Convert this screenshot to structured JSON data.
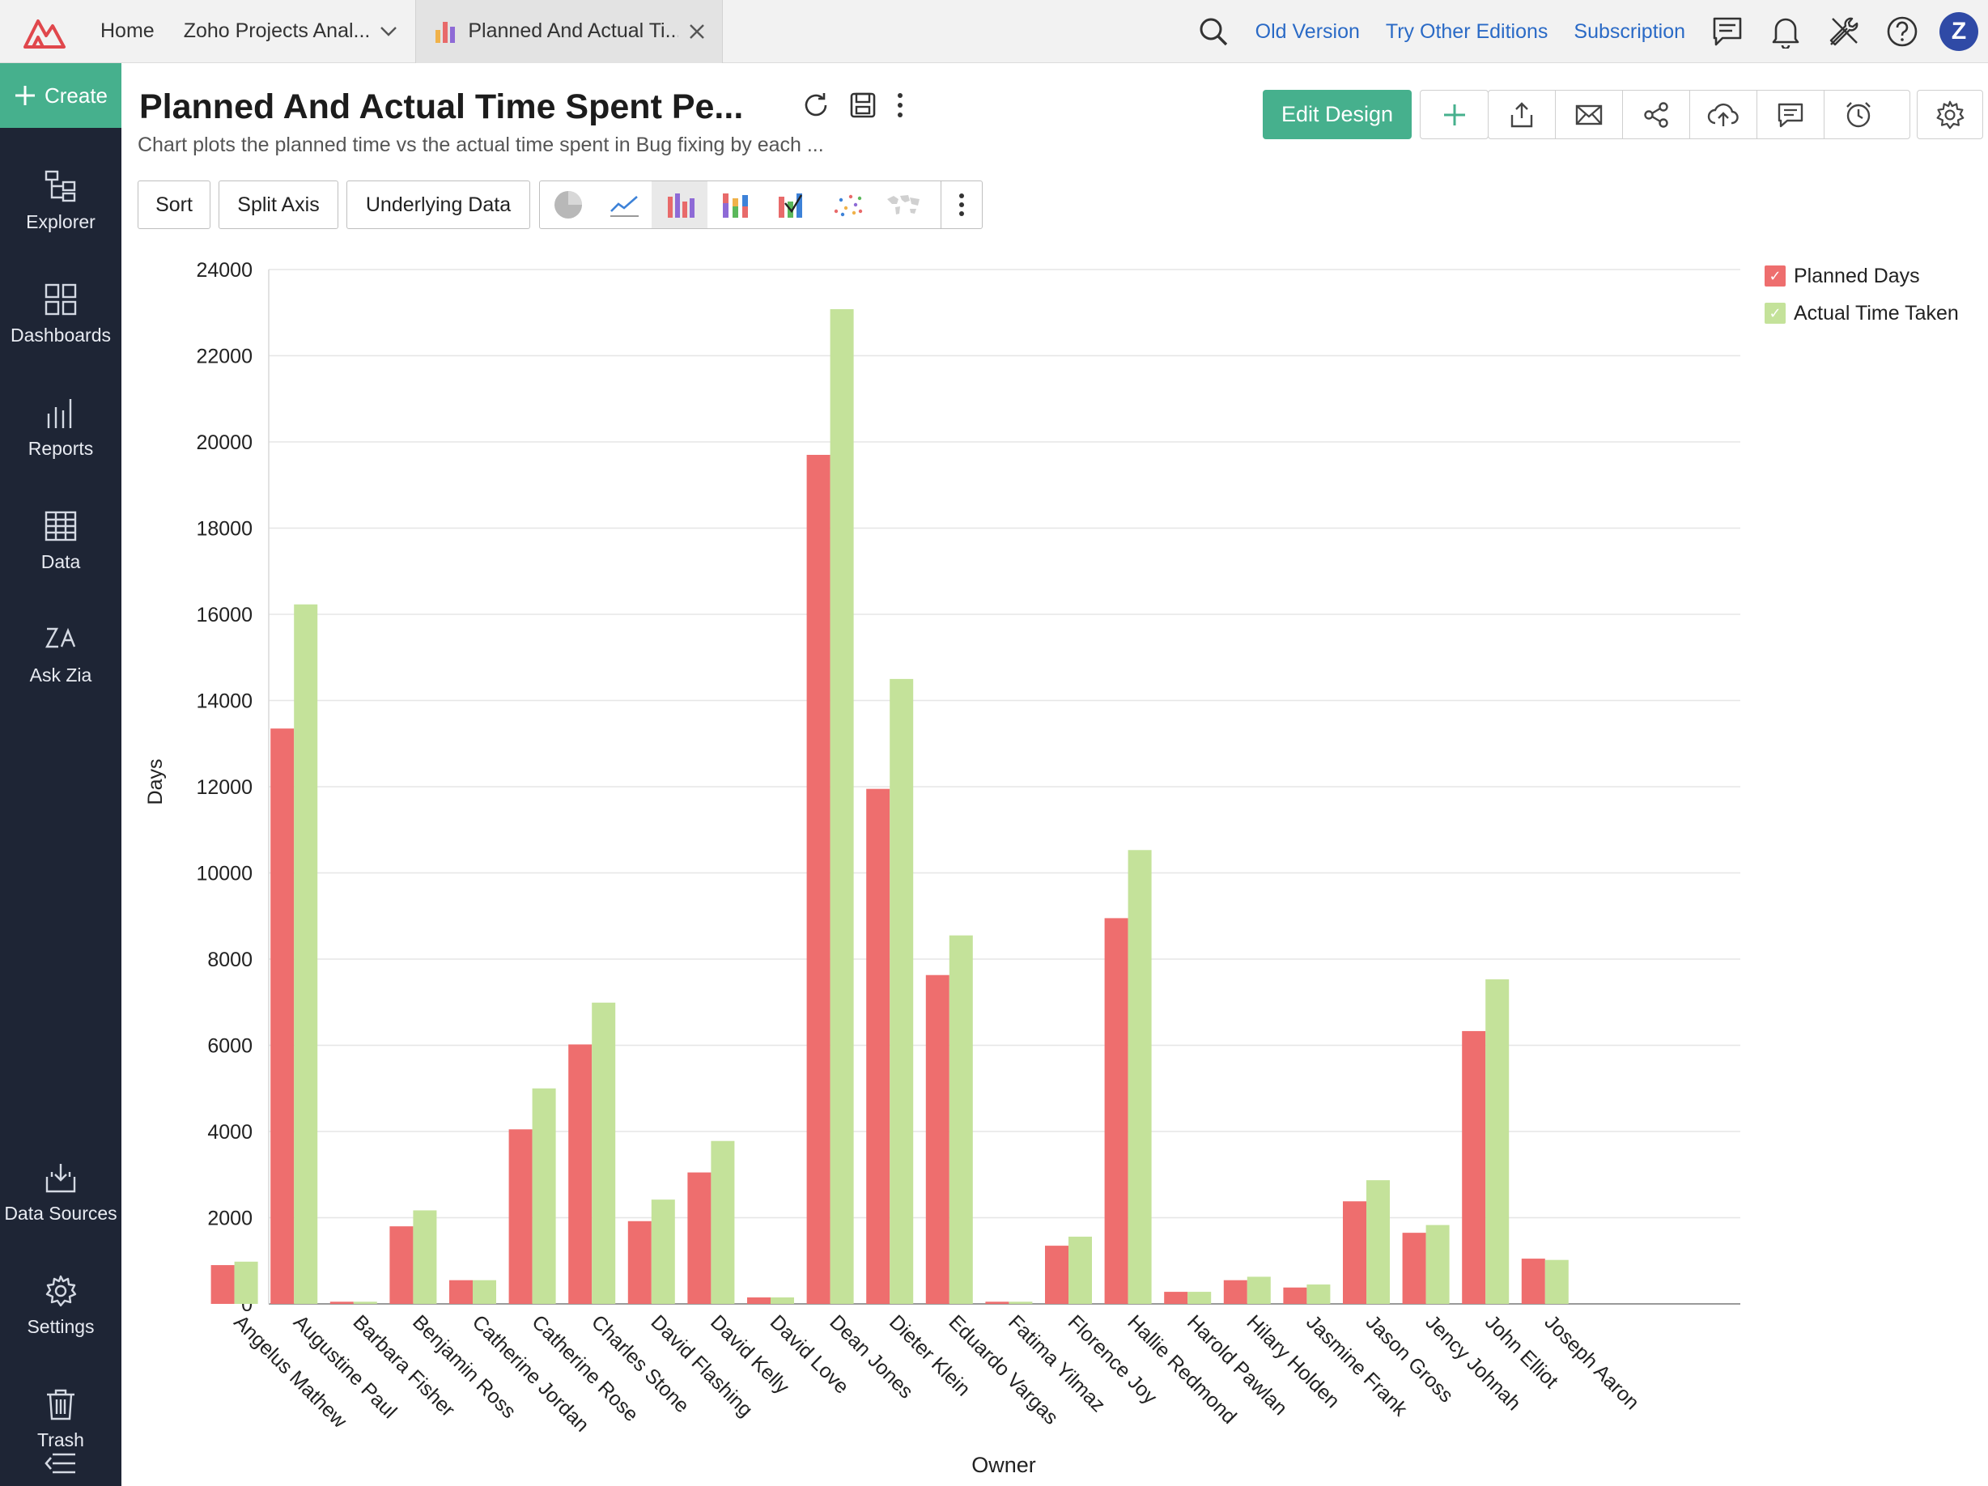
{
  "topbar": {
    "home": "Home",
    "workspace": "Zoho Projects Anal...",
    "tab_label": "Planned And Actual Ti...",
    "links": [
      "Old Version",
      "Try Other Editions",
      "Subscription"
    ],
    "avatar_letter": "Z"
  },
  "sidebar": {
    "create": "Create",
    "items": [
      "Explorer",
      "Dashboards",
      "Reports",
      "Data",
      "Ask Zia",
      "Data Sources",
      "Settings",
      "Trash"
    ]
  },
  "report": {
    "title": "Planned And Actual Time Spent Pe...",
    "subtitle": "Chart plots the planned time vs the actual time spent in Bug fixing by each ...",
    "edit_design": "Edit Design"
  },
  "toolbar": {
    "sort": "Sort",
    "split_axis": "Split Axis",
    "underlying_data": "Underlying Data"
  },
  "colors": {
    "planned": "#ee6e6e",
    "actual": "#c4e29a",
    "accent": "#46b08d",
    "sidebar": "#1e2535",
    "link": "#2a6ac6"
  },
  "chart_data": {
    "type": "bar",
    "xlabel": "Owner",
    "ylabel": "Days",
    "ylim": [
      0,
      24000
    ],
    "yticks": [
      0,
      2000,
      4000,
      6000,
      8000,
      10000,
      12000,
      14000,
      16000,
      18000,
      20000,
      22000,
      24000
    ],
    "grid": true,
    "legend_position": "top-right",
    "categories": [
      "Angelus Mathew",
      "Augustine Paul",
      "Barbara Fisher",
      "Benjamin Ross",
      "Catherine Jordan",
      "Catherine Rose",
      "Charles Stone",
      "David Flashing",
      "David Kelly",
      "David Love",
      "Dean Jones",
      "Dieter Klein",
      "Eduardo Vargas",
      "Fatima Yilmaz",
      "Florence Joy",
      "Hallie Redmond",
      "Harold Pawlan",
      "Hilary Holden",
      "Jasmine Frank",
      "Jason Gross",
      "Jency Johnah",
      "John Elliot",
      "Joseph Aaron"
    ],
    "series": [
      {
        "name": "Planned Days",
        "values": [
          900,
          13350,
          50,
          1800,
          550,
          4050,
          6020,
          1920,
          3050,
          150,
          19700,
          11950,
          7630,
          50,
          1350,
          8950,
          280,
          550,
          380,
          2380,
          1650,
          6330,
          1050
        ]
      },
      {
        "name": "Actual Time Taken",
        "values": [
          980,
          16230,
          50,
          2170,
          550,
          5000,
          6990,
          2420,
          3780,
          150,
          23080,
          14500,
          8550,
          50,
          1560,
          10530,
          280,
          630,
          450,
          2870,
          1830,
          7530,
          1020
        ]
      }
    ]
  }
}
